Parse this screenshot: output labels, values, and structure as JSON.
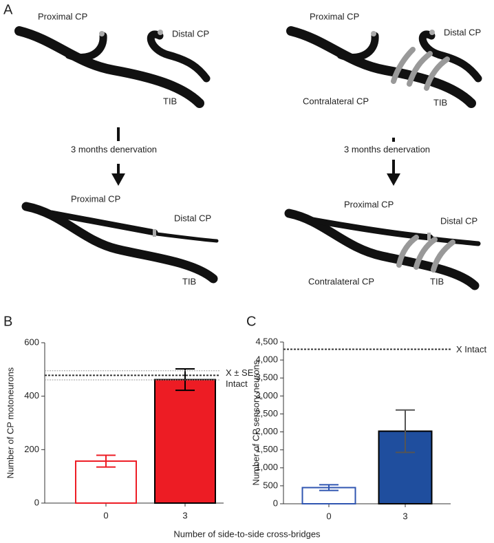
{
  "diagram": {
    "panel_label": "A",
    "top_left": {
      "proximal": "Proximal CP",
      "distal": "Distal CP",
      "tib": "TIB"
    },
    "top_right": {
      "proximal": "Proximal CP",
      "distal": "Distal CP",
      "contralateral": "Contralateral CP",
      "tib": "TIB"
    },
    "arrow_left": "3 months denervation",
    "arrow_right": "3 months denervation",
    "bottom_left": {
      "proximal": "Proximal CP",
      "distal": "Distal CP",
      "tib": "TIB"
    },
    "bottom_right": {
      "proximal": "Proximal CP",
      "distal": "Distal CP",
      "contralateral": "Contralateral CP",
      "tib": "TIB"
    }
  },
  "x_label": "Number of side-to-side cross-bridges",
  "chart_data": [
    {
      "type": "bar",
      "panel_label": "B",
      "y_label": "Number of CP motoneurons",
      "categories": [
        "0",
        "3"
      ],
      "values": [
        157,
        462
      ],
      "errors": [
        22,
        40
      ],
      "colors": [
        "#ffffff",
        "#ed1c24"
      ],
      "edge_colors": [
        "#ed1c24",
        "#000000"
      ],
      "ylim": [
        0,
        600
      ],
      "yticks": [
        0,
        200,
        400,
        600
      ],
      "reference": {
        "mean": 478,
        "se": 17
      },
      "reference_label": [
        "X ± SE",
        "Intact"
      ]
    },
    {
      "type": "bar",
      "panel_label": "C",
      "y_label": "Number of CP sensory neurons",
      "categories": [
        "0",
        "3"
      ],
      "values": [
        450,
        2020
      ],
      "errors": [
        80,
        590
      ],
      "colors": [
        "#ffffff",
        "#1f4e9e"
      ],
      "edge_colors": [
        "#2f55b0",
        "#000000"
      ],
      "ylim": [
        0,
        4500
      ],
      "yticks": [
        0,
        500,
        {
          "value": 1000,
          "label": "1,000"
        },
        {
          "value": 1500,
          "label": "1,500"
        },
        {
          "value": 2000,
          "label": "2,000"
        },
        {
          "value": 2500,
          "label": "2,500"
        },
        {
          "value": 3000,
          "label": "3,000"
        },
        {
          "value": 3500,
          "label": "3,500"
        },
        {
          "value": 4000,
          "label": "4,000"
        },
        {
          "value": 4500,
          "label": "4,500"
        }
      ],
      "reference": {
        "mean": 4300
      },
      "reference_label": [
        "X Intact"
      ]
    }
  ]
}
